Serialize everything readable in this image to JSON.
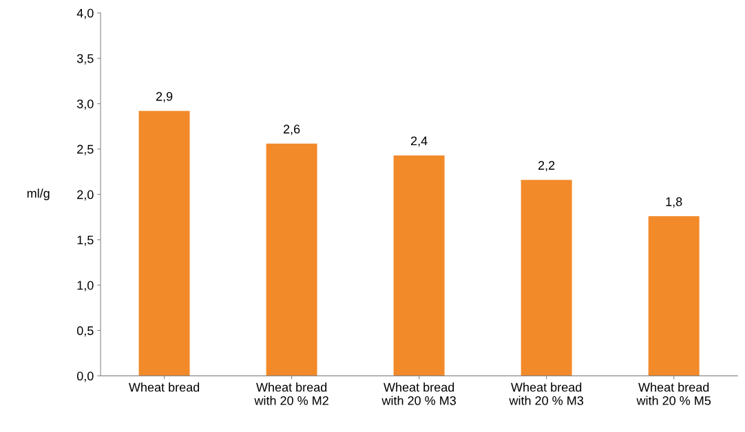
{
  "chart_data": {
    "type": "bar",
    "ylabel": "ml/g",
    "categories": [
      "Wheat bread",
      "Wheat bread\nwith 20 % M2",
      "Wheat bread\nwith 20 % M3",
      "Wheat bread\nwith 20 % M3",
      "Wheat bread\nwith 20 % M5"
    ],
    "values": [
      2.92,
      2.56,
      2.43,
      2.16,
      1.76
    ],
    "value_labels": [
      "2,9",
      "2,6",
      "2,4",
      "2,2",
      "1,8"
    ],
    "color": "#f28a2a",
    "ylim": [
      0,
      4
    ],
    "yticks": [
      {
        "value": 0,
        "label": "0,0"
      },
      {
        "value": 0.5,
        "label": "0,5"
      },
      {
        "value": 1,
        "label": "1,0"
      },
      {
        "value": 1.5,
        "label": "1,5"
      },
      {
        "value": 2,
        "label": "2,0"
      },
      {
        "value": 2.5,
        "label": "2,5"
      },
      {
        "value": 3,
        "label": "3,0"
      },
      {
        "value": 3.5,
        "label": "3,5"
      },
      {
        "value": 4,
        "label": "4,0"
      }
    ],
    "grid": false
  }
}
